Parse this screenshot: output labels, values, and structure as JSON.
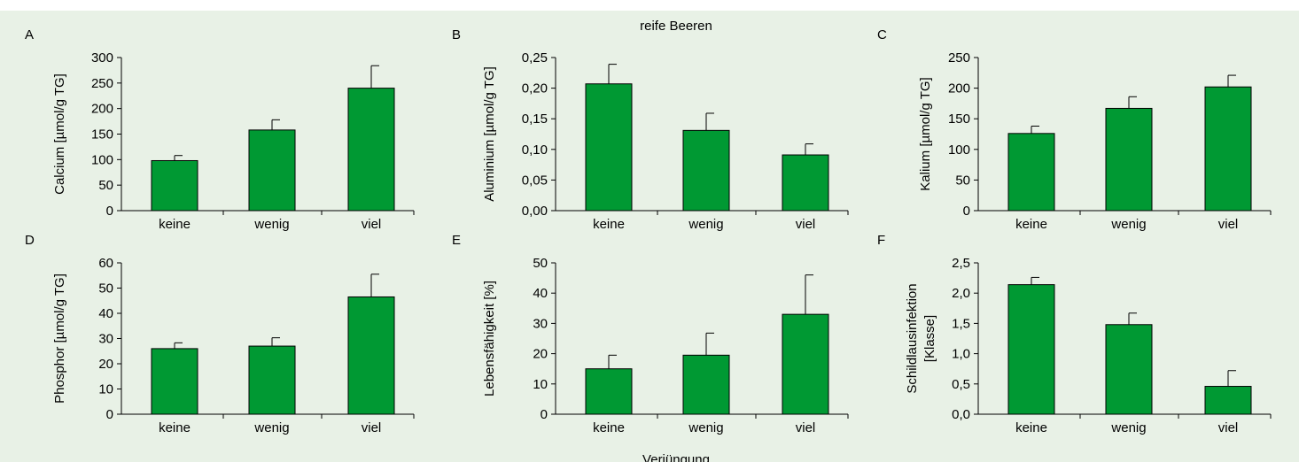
{
  "figure": {
    "top_title": "reife Beeren",
    "bottom_label": "Verjüngung",
    "bar_color": "#009933"
  },
  "chart_data": [
    {
      "letter": "A",
      "type": "bar",
      "ylabel": "Calcium [µmol/g TG]",
      "ylim": [
        0,
        300
      ],
      "yticks": [
        "0",
        "50",
        "100",
        "150",
        "200",
        "250",
        "300"
      ],
      "tick_values": [
        0,
        50,
        100,
        150,
        200,
        250,
        300
      ],
      "categories": [
        "keine",
        "wenig",
        "viel"
      ],
      "values": [
        98,
        158,
        240
      ],
      "errors": [
        10,
        20,
        44
      ]
    },
    {
      "letter": "B",
      "type": "bar",
      "ylabel": "Aluminium [µmol/g TG]",
      "ylim": [
        0,
        0.25
      ],
      "yticks": [
        "0,00",
        "0,05",
        "0,10",
        "0,15",
        "0,20",
        "0,25"
      ],
      "tick_values": [
        0,
        0.05,
        0.1,
        0.15,
        0.2,
        0.25
      ],
      "categories": [
        "keine",
        "wenig",
        "viel"
      ],
      "values": [
        0.207,
        0.131,
        0.091
      ],
      "errors": [
        0.032,
        0.028,
        0.018
      ]
    },
    {
      "letter": "C",
      "type": "bar",
      "ylabel": "Kalium [µmol/g TG]",
      "ylim": [
        0,
        250
      ],
      "yticks": [
        "0",
        "50",
        "100",
        "150",
        "200",
        "250"
      ],
      "tick_values": [
        0,
        50,
        100,
        150,
        200,
        250
      ],
      "categories": [
        "keine",
        "wenig",
        "viel"
      ],
      "values": [
        126,
        167,
        202
      ],
      "errors": [
        12,
        19,
        19
      ]
    },
    {
      "letter": "D",
      "type": "bar",
      "ylabel": "Phosphor [µmol/g TG]",
      "ylim": [
        0,
        60
      ],
      "yticks": [
        "0",
        "10",
        "20",
        "30",
        "40",
        "50",
        "60"
      ],
      "tick_values": [
        0,
        10,
        20,
        30,
        40,
        50,
        60
      ],
      "categories": [
        "keine",
        "wenig",
        "viel"
      ],
      "values": [
        26,
        27,
        46.5
      ],
      "errors": [
        2.3,
        3.3,
        9
      ]
    },
    {
      "letter": "E",
      "type": "bar",
      "ylabel": "Lebensfähigkeit [%]",
      "ylim": [
        0,
        50
      ],
      "yticks": [
        "0",
        "10",
        "20",
        "30",
        "40",
        "50"
      ],
      "tick_values": [
        0,
        10,
        20,
        30,
        40,
        50
      ],
      "categories": [
        "keine",
        "wenig",
        "viel"
      ],
      "values": [
        15,
        19.5,
        33
      ],
      "errors": [
        4.5,
        7.3,
        13
      ]
    },
    {
      "letter": "F",
      "type": "bar",
      "ylabel": [
        "Schildlausinfektion",
        "[Klasse]"
      ],
      "ylim": [
        0,
        2.5
      ],
      "yticks": [
        "0,0",
        "0,5",
        "1,0",
        "1,5",
        "2,0",
        "2,5"
      ],
      "tick_values": [
        0,
        0.5,
        1.0,
        1.5,
        2.0,
        2.5
      ],
      "categories": [
        "keine",
        "wenig",
        "viel"
      ],
      "values": [
        2.14,
        1.48,
        0.46
      ],
      "errors": [
        0.12,
        0.19,
        0.26
      ]
    }
  ]
}
